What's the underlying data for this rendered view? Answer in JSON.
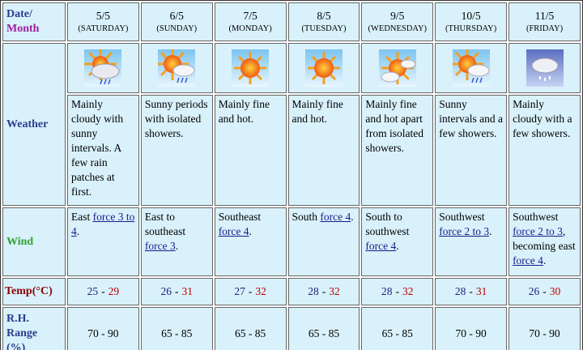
{
  "header": {
    "date_label": "Date/",
    "month_label": "Month"
  },
  "row_labels": {
    "weather": "Weather",
    "wind": "Wind",
    "temp": "Temp(°C)",
    "rh": [
      "R.H.",
      "Range",
      "(%)"
    ]
  },
  "temp_separator": "-",
  "days": [
    {
      "date": "5/5",
      "weekday": "(SATURDAY)",
      "weather": "Mainly cloudy with sunny intervals. A few rain patches at first.",
      "wind": [
        "East ",
        {
          "link": "force 3 to 4"
        },
        "."
      ],
      "temp_min": 25,
      "temp_max": 29,
      "rh": "70 - 90"
    },
    {
      "date": "6/5",
      "weekday": "(SUNDAY)",
      "weather": "Sunny periods with isolated showers.",
      "wind": [
        "East to southeast ",
        {
          "link": "force 3"
        },
        "."
      ],
      "temp_min": 26,
      "temp_max": 31,
      "rh": "65 - 85"
    },
    {
      "date": "7/5",
      "weekday": "(MONDAY)",
      "weather": "Mainly fine and hot.",
      "wind": [
        "Southeast ",
        {
          "link": "force 4"
        },
        "."
      ],
      "temp_min": 27,
      "temp_max": 32,
      "rh": "65 - 85"
    },
    {
      "date": "8/5",
      "weekday": "(TUESDAY)",
      "weather": "Mainly fine and hot.",
      "wind": [
        "South ",
        {
          "link": "force 4"
        },
        "."
      ],
      "temp_min": 28,
      "temp_max": 32,
      "rh": "65 - 85"
    },
    {
      "date": "9/5",
      "weekday": "(WEDNESDAY)",
      "weather": "Mainly fine and hot apart from isolated showers.",
      "wind": [
        "South to southwest ",
        {
          "link": "force 4"
        },
        "."
      ],
      "temp_min": 28,
      "temp_max": 32,
      "rh": "65 - 85"
    },
    {
      "date": "10/5",
      "weekday": "(THURSDAY)",
      "weather": "Sunny intervals and a few showers.",
      "wind": [
        "Southwest ",
        {
          "link": "force 2 to 3"
        },
        "."
      ],
      "temp_min": 28,
      "temp_max": 31,
      "rh": "70 - 90"
    },
    {
      "date": "11/5",
      "weekday": "(FRIDAY)",
      "weather": "Mainly cloudy with a few showers.",
      "wind": [
        "Southwest ",
        {
          "link": "force 2 to 3"
        },
        ", becoming east ",
        {
          "link": "force 4"
        },
        "."
      ],
      "temp_min": 26,
      "temp_max": 30,
      "rh": "70 - 90"
    }
  ]
}
